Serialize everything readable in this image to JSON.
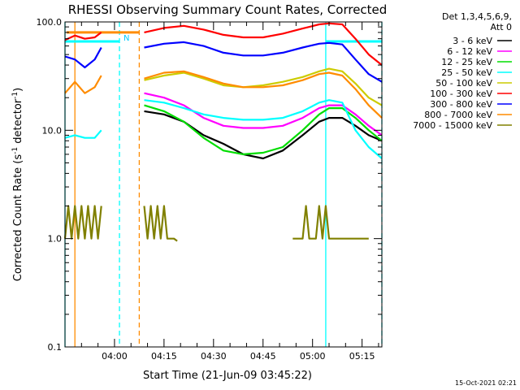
{
  "chart_data": {
    "type": "line",
    "title": "RHESSI Observing Summary Count Rates, Corrected",
    "xlabel": "Start Time (21-Jun-09 03:45:22)",
    "ylabel": "Corrected Count Rate (s⁻¹ detector⁻¹)",
    "ylabel_main": "Corrected Count Rate (s",
    "ylabel_sup1": "-1",
    "ylabel_mid": " detector",
    "ylabel_sup2": "-1",
    "ylabel_end": ")",
    "x_range_minutes_after_0345": [
      0,
      96
    ],
    "y_scale": "log",
    "ylim": [
      0.1,
      100
    ],
    "x_tick_labels": [
      "04:00",
      "04:15",
      "04:30",
      "04:45",
      "05:00",
      "05:15"
    ],
    "x_tick_minutes": [
      15,
      30,
      45,
      60,
      75,
      90
    ],
    "y_tick_labels": [
      "0.1",
      "1.0",
      "10.0",
      "100.0"
    ],
    "y_tick_values": [
      0.1,
      1,
      10,
      100
    ],
    "legend_header": [
      "Det 1,3,4,5,6,9,",
      "Att 0"
    ],
    "legend_position": "right",
    "date_stamp": "15-Oct-2021 02:21",
    "marker_label": "N",
    "series": [
      {
        "name": "3 - 6 keV",
        "color": "#000000",
        "segments": [
          {
            "x": [
              24,
              30,
              36,
              42,
              48,
              54,
              60,
              66,
              72,
              77,
              80,
              84,
              88,
              92,
              96
            ],
            "y": [
              15,
              14,
              12,
              9,
              7.5,
              6,
              5.5,
              6.5,
              9,
              12,
              13,
              13,
              11,
              9,
              8
            ]
          }
        ]
      },
      {
        "name": "6 - 12 keV",
        "color": "#ff00ff",
        "segments": [
          {
            "x": [
              24,
              30,
              36,
              42,
              48,
              54,
              60,
              66,
              72,
              77,
              80,
              84,
              88,
              92,
              96
            ],
            "y": [
              22,
              20,
              17,
              13,
              11,
              10.5,
              10.5,
              11,
              13,
              16,
              17,
              17,
              14,
              11,
              9
            ]
          }
        ]
      },
      {
        "name": "12 - 25 keV",
        "color": "#00dd00",
        "segments": [
          {
            "x": [
              24,
              30,
              36,
              42,
              48,
              54,
              60,
              66,
              72,
              77,
              80,
              84,
              88,
              92,
              96
            ],
            "y": [
              17,
              15,
              12,
              8.5,
              6.5,
              6,
              6.2,
              7,
              10,
              14,
              16,
              16,
              13,
              10,
              8
            ]
          }
        ]
      },
      {
        "name": "25 - 50 keV",
        "color": "#00ffff",
        "segments": [
          {
            "x": [
              0,
              3,
              6,
              9,
              11
            ],
            "y": [
              8.5,
              9,
              8.5,
              8.5,
              10
            ]
          },
          {
            "x": [
              24,
              30,
              36,
              42,
              48,
              54,
              60,
              66,
              72,
              77,
              80,
              84,
              88,
              92,
              96
            ],
            "y": [
              19,
              18,
              16,
              14,
              13,
              12.5,
              12.5,
              13,
              15,
              18,
              19,
              18,
              10,
              7,
              5.5
            ]
          }
        ]
      },
      {
        "name": "50 - 100 keV",
        "color": "#cccc00",
        "segments": [
          {
            "x": [
              24,
              30,
              36,
              42,
              48,
              54,
              60,
              66,
              72,
              77,
              80,
              84,
              88,
              92,
              96
            ],
            "y": [
              29,
              32,
              34,
              30,
              26,
              25,
              26,
              28,
              31,
              35,
              37,
              35,
              27,
              20,
              17
            ]
          }
        ]
      },
      {
        "name": "100 - 300 keV",
        "color": "#ff0000",
        "segments": [
          {
            "x": [
              0,
              3,
              6,
              9,
              11
            ],
            "y": [
              68,
              75,
              70,
              72,
              80
            ]
          },
          {
            "x": [
              24,
              30,
              36,
              42,
              48,
              54,
              60,
              66,
              72,
              77,
              80,
              84,
              88,
              92,
              96
            ],
            "y": [
              80,
              88,
              92,
              85,
              76,
              72,
              72,
              78,
              87,
              95,
              97,
              95,
              70,
              50,
              40
            ]
          }
        ]
      },
      {
        "name": "300 - 800 keV",
        "color": "#0000ff",
        "segments": [
          {
            "x": [
              0,
              3,
              6,
              9,
              11
            ],
            "y": [
              48,
              45,
              38,
              45,
              58
            ]
          },
          {
            "x": [
              24,
              30,
              36,
              42,
              48,
              54,
              60,
              66,
              72,
              77,
              80,
              84,
              88,
              92,
              96
            ],
            "y": [
              58,
              63,
              65,
              60,
              52,
              49,
              49,
              52,
              58,
              63,
              64,
              62,
              45,
              33,
              28
            ]
          }
        ]
      },
      {
        "name": "800 - 7000 keV",
        "color": "#ff8c00",
        "segments": [
          {
            "x": [
              0,
              3,
              6,
              9,
              11
            ],
            "y": [
              22,
              28,
              22,
              25,
              32
            ]
          },
          {
            "x": [
              24,
              30,
              36,
              42,
              48,
              54,
              60,
              66,
              72,
              77,
              80,
              84,
              88,
              92,
              96
            ],
            "y": [
              30,
              34,
              35,
              31,
              27,
              25,
              25,
              26,
              29,
              33,
              34,
              32,
              24,
              17,
              13
            ]
          }
        ]
      },
      {
        "name": "7000 - 15000 keV",
        "color": "#808000",
        "segments": [
          {
            "x": [
              0,
              1,
              2,
              3,
              4,
              5,
              6,
              7,
              8,
              9,
              10,
              11
            ],
            "y": [
              1,
              2,
              1,
              2,
              1,
              2,
              1,
              2,
              1,
              2,
              1,
              2
            ]
          },
          {
            "x": [
              24,
              25,
              26,
              27,
              28,
              29,
              30,
              31,
              32,
              33,
              34
            ],
            "y": [
              2,
              1,
              2,
              1,
              2,
              1,
              2,
              1,
              1,
              1,
              0.95
            ]
          },
          {
            "x": [
              69,
              72,
              73,
              74,
              75,
              76,
              77,
              78,
              79,
              80,
              81,
              82,
              84,
              88,
              92
            ],
            "y": [
              1,
              1,
              2,
              1,
              1,
              1,
              2,
              1,
              2,
              1,
              1,
              1,
              1,
              1,
              1
            ]
          }
        ]
      }
    ],
    "attenuator_state_bars": [
      {
        "color": "#ff8c00",
        "x_start": 0.5,
        "x_end": 22.5,
        "y": 80
      },
      {
        "color": "#00ffff",
        "x_start": 0,
        "x_end": 16.5,
        "y": 66
      },
      {
        "color": "#00ffff",
        "x_start": 79,
        "x_end": 96,
        "y": 66
      }
    ],
    "vertical_markers": [
      {
        "color": "#00ffff",
        "style": "solid",
        "x": 0
      },
      {
        "color": "#ff8c00",
        "style": "solid",
        "x": 3
      },
      {
        "color": "#00ffff",
        "style": "dashed",
        "x": 16.5
      },
      {
        "color": "#ff8c00",
        "style": "dashed",
        "x": 22.5
      },
      {
        "color": "#00ffff",
        "style": "solid",
        "x": 79
      },
      {
        "color": "#00ffff",
        "style": "dashed",
        "x": 96
      }
    ]
  }
}
